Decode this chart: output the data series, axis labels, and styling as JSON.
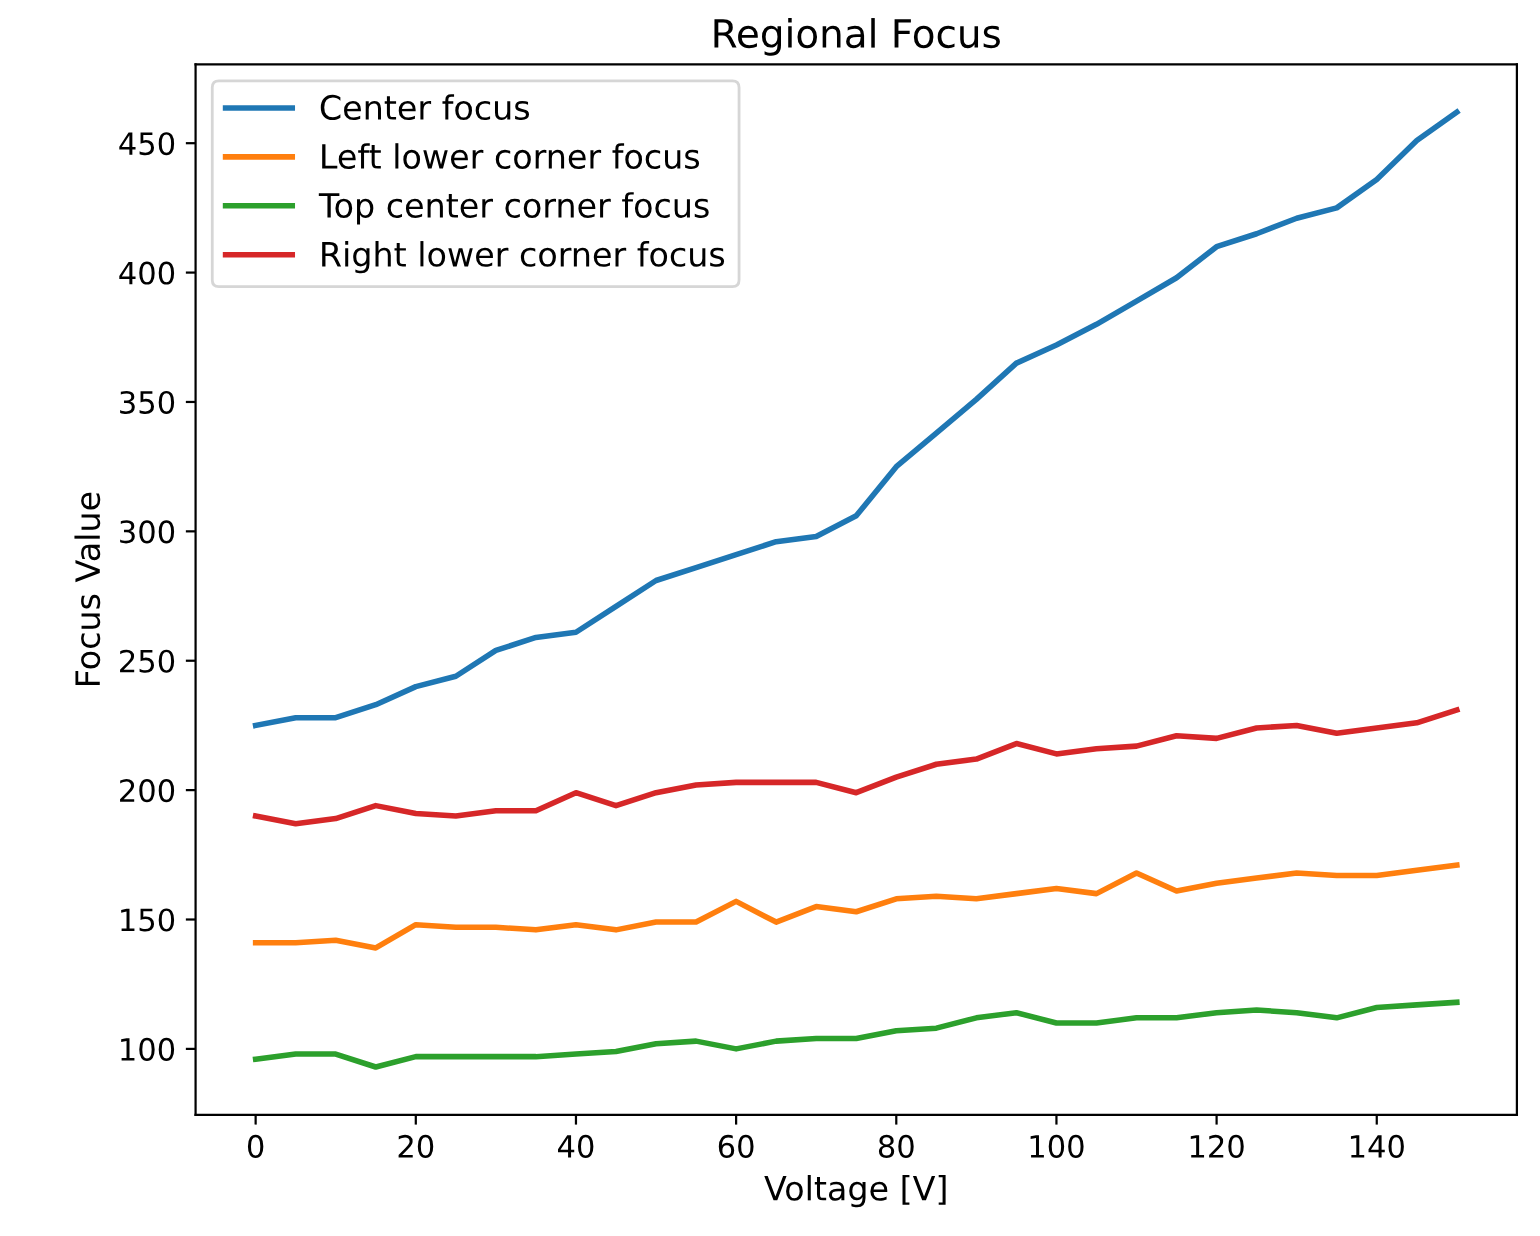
{
  "chart_data": {
    "type": "line",
    "title": "Regional Focus",
    "xlabel": "Voltage [V]",
    "ylabel": "Focus Value",
    "x": [
      0,
      5,
      10,
      15,
      20,
      25,
      30,
      35,
      40,
      45,
      50,
      55,
      60,
      65,
      70,
      75,
      80,
      85,
      90,
      95,
      100,
      105,
      110,
      115,
      120,
      125,
      130,
      135,
      140,
      145,
      150
    ],
    "series": [
      {
        "name": "Center focus",
        "color": "#1f77b4",
        "values": [
          225,
          228,
          228,
          233,
          240,
          244,
          254,
          259,
          261,
          271,
          281,
          286,
          291,
          296,
          298,
          306,
          325,
          338,
          351,
          365,
          372,
          380,
          389,
          398,
          410,
          415,
          421,
          425,
          436,
          451,
          462
        ]
      },
      {
        "name": "Left lower corner focus",
        "color": "#ff7f0e",
        "values": [
          141,
          141,
          142,
          139,
          148,
          147,
          147,
          146,
          148,
          146,
          149,
          149,
          157,
          149,
          155,
          153,
          158,
          159,
          158,
          160,
          162,
          160,
          168,
          161,
          164,
          166,
          168,
          167,
          167,
          169,
          171
        ]
      },
      {
        "name": "Top center corner focus",
        "color": "#2ca02c",
        "values": [
          96,
          98,
          98,
          93,
          97,
          97,
          97,
          97,
          98,
          99,
          102,
          103,
          100,
          103,
          104,
          104,
          107,
          108,
          112,
          114,
          110,
          110,
          112,
          112,
          114,
          115,
          114,
          112,
          116,
          117,
          118
        ]
      },
      {
        "name": "Right lower corner focus",
        "color": "#d62728",
        "values": [
          190,
          187,
          189,
          194,
          191,
          190,
          192,
          192,
          199,
          194,
          199,
          202,
          203,
          203,
          203,
          199,
          205,
          210,
          212,
          218,
          214,
          216,
          217,
          221,
          220,
          224,
          225,
          222,
          224,
          226,
          231
        ]
      }
    ],
    "xlim": [
      -7.5,
      157.5
    ],
    "ylim": [
      74.5,
      480.5
    ],
    "xticks": [
      0,
      20,
      40,
      60,
      80,
      100,
      120,
      140
    ],
    "yticks": [
      100,
      150,
      200,
      250,
      300,
      350,
      400,
      450
    ],
    "grid": false,
    "legend": "top left",
    "marker": "none",
    "line_style": "solid"
  }
}
